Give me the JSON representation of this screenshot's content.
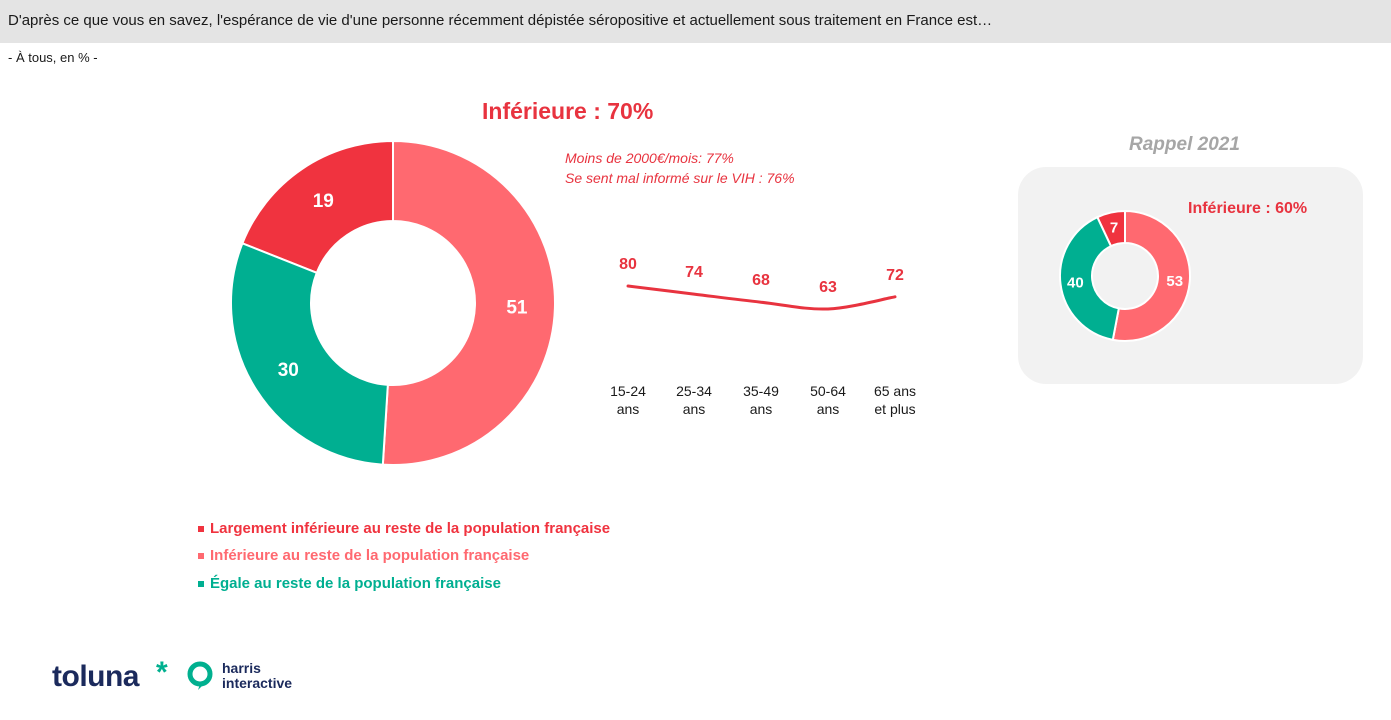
{
  "header": {
    "question": "D'après ce que vous en savez, l'espérance de vie d'une personne récemment dépistée séropositive et actuellement sous traitement en France est…",
    "base": "- À tous, en % -"
  },
  "colors": {
    "largement_inferieure": "#f0333f",
    "inferieure": "#ff6970",
    "egale": "#00af91",
    "accent": "#e8333f",
    "recall_title": "#a6a6a6"
  },
  "chart_data": [
    {
      "type": "pie",
      "variant": "donut",
      "title": "Inférieure : 70%",
      "categories": [
        "Largement inférieure au reste de la population française",
        "Inférieure au reste de la population française",
        "Égale au reste de la population française"
      ],
      "values": [
        19,
        51,
        30
      ],
      "labels": [
        "19",
        "51",
        "30"
      ],
      "annotations": [
        "Moins de 2000€/mois: 77%",
        "Se sent mal informé sur le VIH : 76%"
      ],
      "legend_position": "bottom"
    },
    {
      "type": "line",
      "x": [
        "15-24 ans",
        "25-34 ans",
        "35-49 ans",
        "50-64 ans",
        "65 ans et plus"
      ],
      "x_lines": [
        [
          "15-24",
          "ans"
        ],
        [
          "25-34",
          "ans"
        ],
        [
          "35-49",
          "ans"
        ],
        [
          "50-64",
          "ans"
        ],
        [
          "65 ans",
          "et plus"
        ]
      ],
      "values": [
        80,
        74,
        68,
        63,
        72
      ],
      "labels": [
        "80",
        "74",
        "68",
        "63",
        "72"
      ],
      "grid": false
    },
    {
      "type": "pie",
      "variant": "donut",
      "title": "Rappel 2021",
      "subtitle": "Inférieure : 60%",
      "values": [
        7,
        53,
        40
      ],
      "labels": [
        "7",
        "53",
        "40"
      ]
    }
  ],
  "logos": {
    "toluna": "toluna",
    "toluna_mark": "*",
    "harris": "harris",
    "interactive": "interactive"
  }
}
